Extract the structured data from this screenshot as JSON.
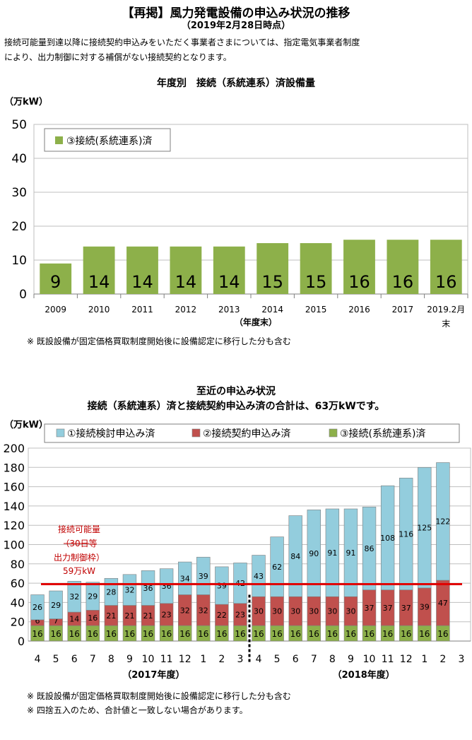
{
  "header": {
    "title": "【再掲】風力発電設備の申込み状況の推移",
    "date": "（2019年2月28日時点）",
    "intro_line1": "接続可能量到達以降に接続契約申込みをいただく事業者さまについては、指定電気事業者制度",
    "intro_line2": "により、出力制御に対する補償がない接続契約となります。"
  },
  "chart_data": [
    {
      "type": "bar",
      "title": "年度別　接続（系統連系）済設備量",
      "ylabel": "（万kW）",
      "xlabel": "（年度末）",
      "ylim": [
        0,
        50
      ],
      "yticks": [
        "0",
        "10",
        "20",
        "30",
        "40",
        "50"
      ],
      "grid": true,
      "legend_position": "top-left",
      "categories": [
        "2009",
        "2010",
        "2011",
        "2012",
        "2013",
        "2014",
        "2015",
        "2016",
        "2017",
        "2019.2月末"
      ],
      "series": [
        {
          "name": "③接続(系統連系)済",
          "values": [
            9,
            14,
            14,
            14,
            14,
            15,
            15,
            16,
            16,
            16
          ]
        }
      ],
      "note": "※ 既設設備が固定価格買取制度開始後に設備認定に移行した分も含む"
    },
    {
      "type": "bar",
      "stacked": true,
      "title": "至近の申込み状況",
      "subtitle": "接続（系統連系）済と接続契約申込み済の合計は、63万kWです。",
      "ylabel": "（万kW）",
      "ylim": [
        0,
        200
      ],
      "yticks": [
        "0",
        "20",
        "40",
        "60",
        "80",
        "100",
        "120",
        "140",
        "160",
        "180",
        "200"
      ],
      "grid": true,
      "legend_position": "top",
      "categories": [
        "4",
        "5",
        "6",
        "7",
        "8",
        "9",
        "10",
        "11",
        "12",
        "1",
        "2",
        "3",
        "4",
        "5",
        "6",
        "7",
        "8",
        "9",
        "10",
        "11",
        "12",
        "1",
        "2"
      ],
      "extra_tick": "3",
      "groups": [
        "（2017年度）",
        "（2018年度）"
      ],
      "series": [
        {
          "name": "③接続(系統連系)済",
          "color": "#8db04a",
          "values": [
            16,
            16,
            16,
            16,
            16,
            16,
            16,
            16,
            16,
            16,
            16,
            16,
            16,
            16,
            16,
            16,
            16,
            16,
            16,
            16,
            16,
            16,
            16
          ]
        },
        {
          "name": "②接続契約申込み済",
          "color": "#c0504d",
          "values": [
            6,
            7,
            14,
            16,
            21,
            21,
            21,
            23,
            32,
            32,
            22,
            23,
            30,
            30,
            30,
            30,
            30,
            30,
            37,
            37,
            37,
            39,
            47
          ]
        },
        {
          "name": "①接続検討申込み済",
          "color": "#93cddd",
          "values": [
            26,
            29,
            32,
            29,
            28,
            32,
            36,
            36,
            34,
            39,
            39,
            42,
            43,
            62,
            84,
            90,
            91,
            91,
            86,
            108,
            116,
            125,
            122
          ]
        }
      ],
      "hline": {
        "value": 59,
        "color": "#e00000",
        "label_lines": [
          "接続可能量",
          "（30日等",
          "出力制御枠）",
          "59万kW"
        ]
      },
      "notes": [
        "※ 既設設備が固定価格買取制度開始後に設備認定に移行した分も含む",
        "※ 四捨五入のため、合計値と一致しない場合があります。"
      ]
    }
  ]
}
